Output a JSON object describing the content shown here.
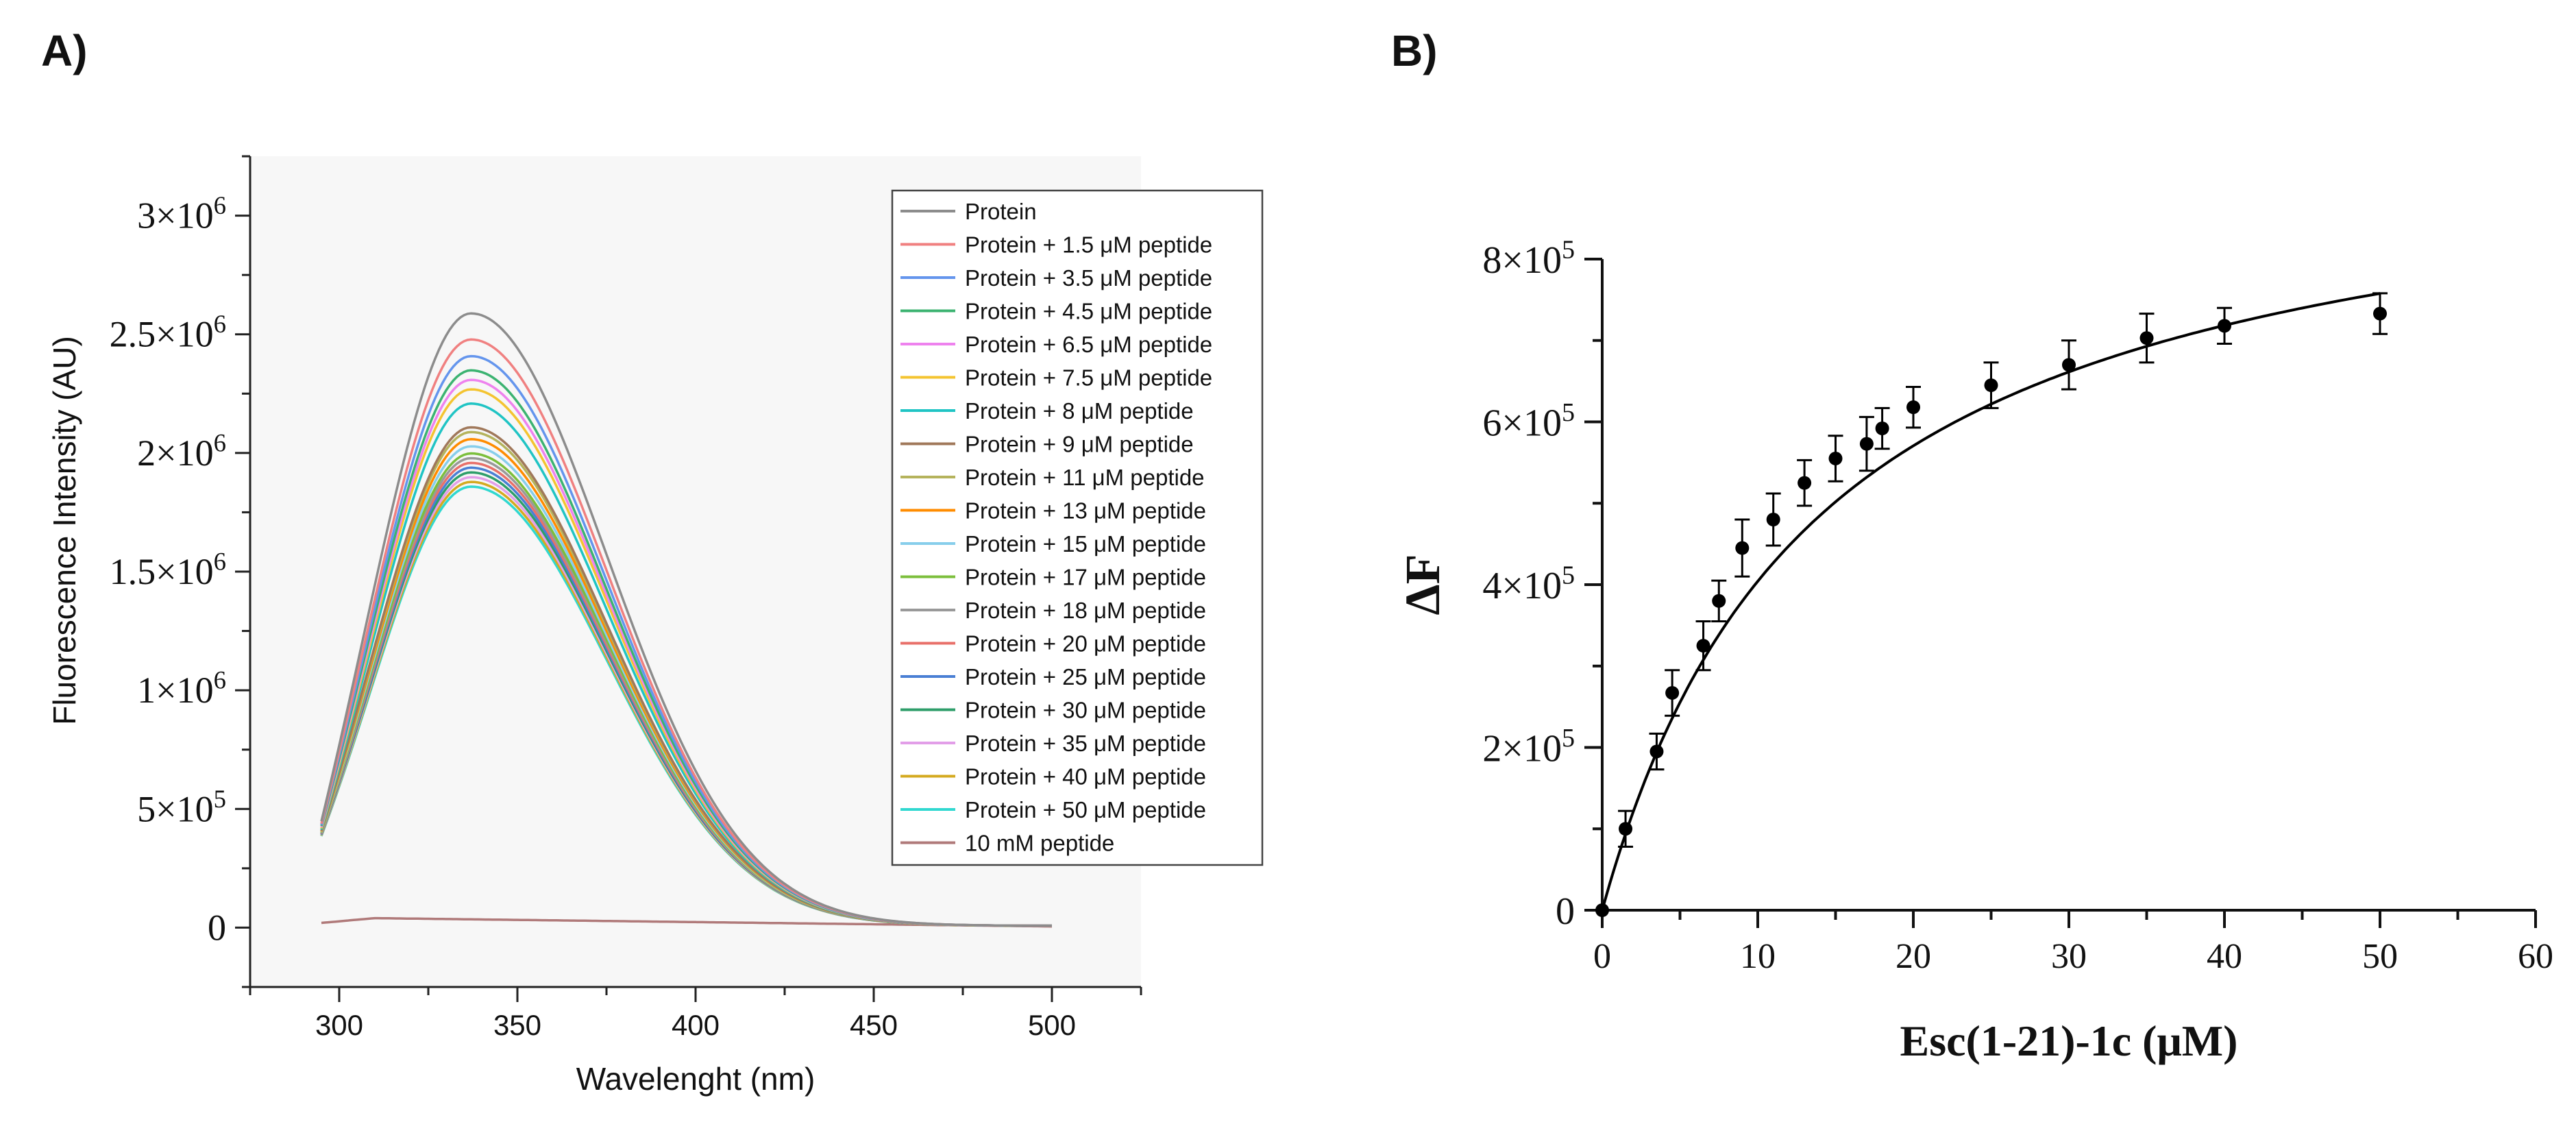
{
  "panels": {
    "a": {
      "label": "A)"
    },
    "b": {
      "label": "B)"
    }
  },
  "chart_data": [
    {
      "type": "line",
      "panel": "A)",
      "title": "",
      "xlabel": "Wavelenght (nm)",
      "ylabel": "Fluorescence Intensity (AU)",
      "xlim": [
        275,
        525
      ],
      "ylim": [
        -250000,
        3250000
      ],
      "x_range": [
        295,
        500
      ],
      "xticks": [
        300,
        350,
        400,
        450,
        500
      ],
      "xtick_labels": [
        "300",
        "350",
        "400",
        "450",
        "500"
      ],
      "yticks": [
        0,
        500000,
        1000000,
        1500000,
        2000000,
        2500000,
        3000000
      ],
      "ytick_labels": [
        {
          "mant": "0",
          "exp": ""
        },
        {
          "mant": "5×10",
          "exp": "5"
        },
        {
          "mant": "1×10",
          "exp": "6"
        },
        {
          "mant": "1.5×10",
          "exp": "6"
        },
        {
          "mant": "2×10",
          "exp": "6"
        },
        {
          "mant": "2.5×10",
          "exp": "6"
        },
        {
          "mant": "3×10",
          "exp": "6"
        }
      ],
      "legend_position": "top-right",
      "series": [
        {
          "name": "Protein",
          "color": "#8c8c8c",
          "peak_nm": 337,
          "peak": 2580000,
          "start": 440000
        },
        {
          "name": "Protein + 1.5 μM peptide",
          "color": "#f08080",
          "peak_nm": 337,
          "peak": 2470000,
          "start": 430000
        },
        {
          "name": "Protein + 3.5 μM peptide",
          "color": "#6495ed",
          "peak_nm": 337,
          "peak": 2400000,
          "start": 425000
        },
        {
          "name": "Protein + 4.5 μM peptide",
          "color": "#3cb371",
          "peak_nm": 337,
          "peak": 2340000,
          "start": 420000
        },
        {
          "name": "Protein + 6.5 μM peptide",
          "color": "#ee82ee",
          "peak_nm": 337,
          "peak": 2300000,
          "start": 415000
        },
        {
          "name": "Protein + 7.5 μM peptide",
          "color": "#f4c430",
          "peak_nm": 337,
          "peak": 2260000,
          "start": 410000
        },
        {
          "name": "Protein + 8 μM peptide",
          "color": "#20c4c4",
          "peak_nm": 337,
          "peak": 2200000,
          "start": 405000
        },
        {
          "name": "Protein + 9 μM peptide",
          "color": "#a0785a",
          "peak_nm": 337,
          "peak": 2100000,
          "start": 400000
        },
        {
          "name": "Protein + 11 μM peptide",
          "color": "#b5b35c",
          "peak_nm": 337,
          "peak": 2080000,
          "start": 398000
        },
        {
          "name": "Protein + 13 μM peptide",
          "color": "#ff8c00",
          "peak_nm": 337,
          "peak": 2050000,
          "start": 396000
        },
        {
          "name": "Protein + 15 μM peptide",
          "color": "#87ceeb",
          "peak_nm": 337,
          "peak": 2020000,
          "start": 394000
        },
        {
          "name": "Protein + 17 μM peptide",
          "color": "#7cbf3c",
          "peak_nm": 337,
          "peak": 1990000,
          "start": 392000
        },
        {
          "name": "Protein + 18 μM peptide",
          "color": "#999999",
          "peak_nm": 337,
          "peak": 1970000,
          "start": 390000
        },
        {
          "name": "Protein + 20 μM peptide",
          "color": "#e8706a",
          "peak_nm": 337,
          "peak": 1950000,
          "start": 388000
        },
        {
          "name": "Protein + 25 μM peptide",
          "color": "#4a7fd4",
          "peak_nm": 337,
          "peak": 1930000,
          "start": 386000
        },
        {
          "name": "Protein + 30 μM peptide",
          "color": "#2e9e6a",
          "peak_nm": 337,
          "peak": 1910000,
          "start": 384000
        },
        {
          "name": "Protein + 35 μM peptide",
          "color": "#e29ee8",
          "peak_nm": 337,
          "peak": 1890000,
          "start": 382000
        },
        {
          "name": "Protein + 40 μM peptide",
          "color": "#d4aa20",
          "peak_nm": 337,
          "peak": 1870000,
          "start": 380000
        },
        {
          "name": "Protein + 50 μM peptide",
          "color": "#30d8d0",
          "peak_nm": 337,
          "peak": 1850000,
          "start": 378000
        },
        {
          "name": "10 mM peptide",
          "color": "#b07a7a",
          "peak_nm": 310,
          "peak": 40000,
          "start": 20000,
          "flat": true
        }
      ]
    },
    {
      "type": "scatter",
      "panel": "B)",
      "title": "",
      "xlabel": "Esc(1-21)-1c (μM)",
      "ylabel": "ΔF",
      "xlim": [
        0,
        60
      ],
      "ylim": [
        0,
        800000
      ],
      "xticks": [
        0,
        10,
        20,
        30,
        40,
        50,
        60
      ],
      "xtick_labels": [
        "0",
        "10",
        "20",
        "30",
        "40",
        "50",
        "60"
      ],
      "yticks": [
        0,
        200000,
        400000,
        600000,
        800000
      ],
      "ytick_labels": [
        {
          "mant": "0",
          "exp": ""
        },
        {
          "mant": "2×10",
          "exp": "5"
        },
        {
          "mant": "4×10",
          "exp": "5"
        },
        {
          "mant": "6×10",
          "exp": "5"
        },
        {
          "mant": "8×10",
          "exp": "5"
        }
      ],
      "points": [
        {
          "x": 0,
          "y": 0,
          "err": 0
        },
        {
          "x": 1.5,
          "y": 100000,
          "err": 22000
        },
        {
          "x": 3.5,
          "y": 195000,
          "err": 22000
        },
        {
          "x": 4.5,
          "y": 267000,
          "err": 28000
        },
        {
          "x": 6.5,
          "y": 325000,
          "err": 30000
        },
        {
          "x": 7.5,
          "y": 380000,
          "err": 25000
        },
        {
          "x": 9,
          "y": 445000,
          "err": 35000
        },
        {
          "x": 11,
          "y": 480000,
          "err": 32000
        },
        {
          "x": 13,
          "y": 525000,
          "err": 28000
        },
        {
          "x": 15,
          "y": 555000,
          "err": 28000
        },
        {
          "x": 17,
          "y": 573000,
          "err": 33000
        },
        {
          "x": 18,
          "y": 592000,
          "err": 25000
        },
        {
          "x": 20,
          "y": 618000,
          "err": 25000
        },
        {
          "x": 25,
          "y": 645000,
          "err": 28000
        },
        {
          "x": 30,
          "y": 670000,
          "err": 30000
        },
        {
          "x": 35,
          "y": 703000,
          "err": 30000
        },
        {
          "x": 40,
          "y": 718000,
          "err": 22000
        },
        {
          "x": 50,
          "y": 733000,
          "err": 25000
        }
      ],
      "fit": {
        "type": "hyperbolic",
        "Bmax": 970000,
        "Kd": 14
      }
    }
  ]
}
